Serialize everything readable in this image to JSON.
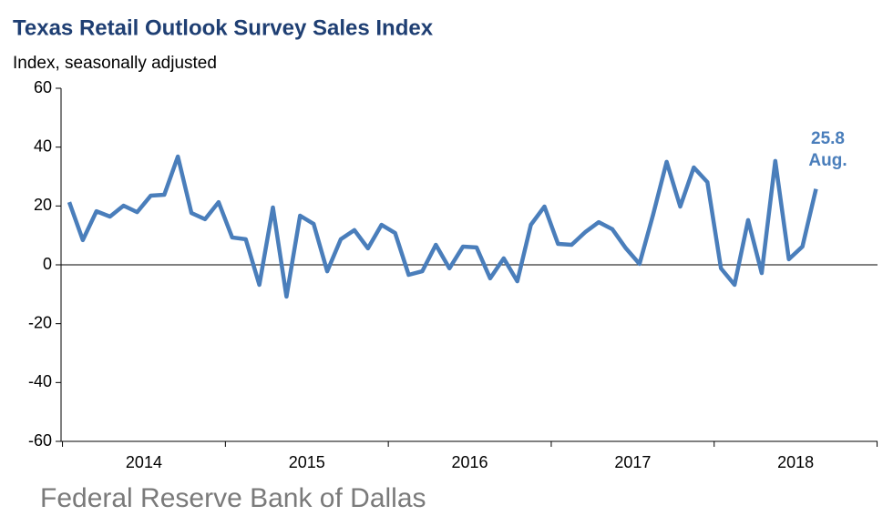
{
  "chart_data": {
    "type": "line",
    "title": "Texas Retail Outlook Survey Sales Index",
    "y_label": "Index, seasonally adjusted",
    "source": "Federal Reserve Bank of Dallas",
    "annotation": "Aug.",
    "color": "#4a7ebb",
    "categories": [
      null,
      null,
      null,
      null,
      null,
      null,
      null,
      null,
      null,
      null,
      null,
      null,
      null,
      null,
      null,
      null,
      null,
      null,
      null,
      null,
      null,
      null,
      null,
      null,
      null,
      null,
      null,
      null,
      null,
      null,
      null,
      null,
      null,
      null,
      null,
      null,
      null,
      null,
      null,
      null,
      null,
      null,
      null,
      null,
      null,
      null,
      null,
      null,
      null,
      null,
      null,
      null,
      null,
      null,
      null,
      null
    ],
    "year_labels": [
      "2014",
      "2015",
      "2016",
      "2017",
      "2018"
    ],
    "values": [
      21.3,
      8.4,
      18.2,
      16.4,
      20.1,
      17.9,
      23.5,
      23.8,
      36.8,
      17.6,
      15.5,
      21.3,
      9.3,
      8.7,
      -6.8,
      19.5,
      -10.8,
      16.7,
      13.9,
      -2.2,
      8.7,
      11.8,
      5.6,
      13.6,
      10.8,
      -3.4,
      -2.2,
      6.8,
      -1.2,
      6.2,
      5.9,
      -4.6,
      2.2,
      -5.6,
      13.6,
      19.8,
      7.1,
      6.8,
      11.1,
      14.5,
      12.1,
      5.6,
      0.3,
      17.0,
      35.0,
      19.8,
      33.1,
      28.1,
      -1.2,
      -6.8,
      15.2,
      -2.8,
      35.3,
      1.9,
      6.2,
      25.8
    ],
    "ylim": [
      -60,
      60
    ],
    "yticks": [
      -60,
      -40,
      -20,
      0,
      20,
      40,
      60
    ]
  }
}
